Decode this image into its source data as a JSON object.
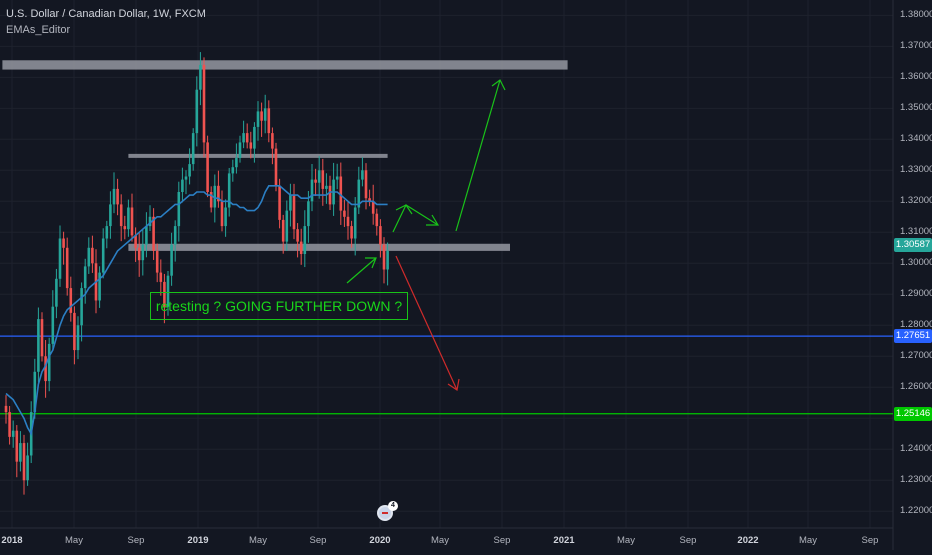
{
  "header": {
    "title": "U.S. Dollar / Canadian Dollar, 1W, FXCM",
    "indicator": "EMAs_Editor"
  },
  "annotation_text": "retesting ? GOING FURTHER DOWN ?",
  "event_badge": "4",
  "price_labels": [
    {
      "value": 1.30587,
      "text": "1.30587",
      "bg": "#26a69a",
      "fg": "#ffffff"
    },
    {
      "value": 1.27651,
      "text": "1.27651",
      "bg": "#2962ff",
      "fg": "#ffffff"
    },
    {
      "value": 1.25146,
      "text": "1.25146",
      "bg": "#00c800",
      "fg": "#ffffff"
    }
  ],
  "colors": {
    "up": "#26a69a",
    "down": "#ef5350",
    "ema": "#2b7fc4",
    "zone": "#9598a1",
    "arrow_up": "#19c319",
    "arrow_down": "#d02b2b",
    "blue_line": "#2962ff",
    "green_line": "#00c800",
    "grid": "#1e222d",
    "background": "#131722"
  },
  "chart_data": {
    "type": "candlestick",
    "symbol": "USDCAD",
    "timeframe": "1W",
    "ylim": [
      1.2146,
      1.3843
    ],
    "x_ticks": [
      {
        "label": "2018",
        "year": true
      },
      {
        "label": "May",
        "year": false
      },
      {
        "label": "Sep",
        "year": false
      },
      {
        "label": "2019",
        "year": true
      },
      {
        "label": "May",
        "year": false
      },
      {
        "label": "Sep",
        "year": false
      },
      {
        "label": "2020",
        "year": true
      },
      {
        "label": "May",
        "year": false
      },
      {
        "label": "Sep",
        "year": false
      },
      {
        "label": "2021",
        "year": true
      },
      {
        "label": "May",
        "year": false
      },
      {
        "label": "Sep",
        "year": false
      },
      {
        "label": "2022",
        "year": true
      },
      {
        "label": "May",
        "year": false
      },
      {
        "label": "Sep",
        "year": false
      }
    ],
    "y_ticks": [
      "1.38000",
      "1.37000",
      "1.36000",
      "1.35000",
      "1.34000",
      "1.33000",
      "1.32000",
      "1.31000",
      "1.30000",
      "1.29000",
      "1.28000",
      "1.27000",
      "1.26000",
      "1.25000",
      "1.24000",
      "1.23000",
      "1.22000"
    ],
    "closes": [
      1.252,
      1.244,
      1.246,
      1.236,
      1.242,
      1.23,
      1.238,
      1.252,
      1.265,
      1.282,
      1.27,
      1.262,
      1.274,
      1.286,
      1.295,
      1.308,
      1.305,
      1.292,
      1.284,
      1.272,
      1.28,
      1.292,
      1.299,
      1.305,
      1.3,
      1.288,
      1.297,
      1.308,
      1.312,
      1.319,
      1.324,
      1.319,
      1.312,
      1.311,
      1.318,
      1.309,
      1.305,
      1.301,
      1.306,
      1.312,
      1.315,
      1.304,
      1.297,
      1.294,
      1.286,
      1.296,
      1.306,
      1.312,
      1.323,
      1.327,
      1.328,
      1.332,
      1.342,
      1.356,
      1.364,
      1.339,
      1.323,
      1.318,
      1.325,
      1.32,
      1.312,
      1.318,
      1.329,
      1.331,
      1.334,
      1.339,
      1.342,
      1.339,
      1.337,
      1.344,
      1.349,
      1.346,
      1.35,
      1.342,
      1.337,
      1.325,
      1.314,
      1.307,
      1.317,
      1.322,
      1.311,
      1.307,
      1.303,
      1.312,
      1.32,
      1.327,
      1.326,
      1.33,
      1.324,
      1.325,
      1.319,
      1.327,
      1.328,
      1.317,
      1.315,
      1.312,
      1.308,
      1.318,
      1.327,
      1.33,
      1.321,
      1.32,
      1.316,
      1.312,
      1.306,
      1.298,
      1.304
    ],
    "ema": [
      1.258,
      1.257,
      1.256,
      1.254,
      1.252,
      1.25,
      1.247,
      1.245,
      1.252,
      1.261,
      1.265,
      1.267,
      1.27,
      1.272,
      1.276,
      1.28,
      1.283,
      1.285,
      1.286,
      1.287,
      1.288,
      1.289,
      1.29,
      1.292,
      1.293,
      1.294,
      1.295,
      1.296,
      1.298,
      1.3,
      1.302,
      1.304,
      1.305,
      1.306,
      1.307,
      1.308,
      1.309,
      1.31,
      1.311,
      1.312,
      1.313,
      1.314,
      1.315,
      1.315,
      1.316,
      1.317,
      1.318,
      1.319,
      1.319,
      1.32,
      1.321,
      1.322,
      1.322,
      1.323,
      1.323,
      1.323,
      1.322,
      1.322,
      1.321,
      1.321,
      1.32,
      1.32,
      1.32,
      1.319,
      1.319,
      1.318,
      1.318,
      1.317,
      1.317,
      1.317,
      1.318,
      1.32,
      1.323,
      1.325,
      1.325,
      1.325,
      1.325,
      1.324,
      1.323,
      1.322,
      1.322,
      1.322,
      1.321,
      1.321,
      1.321,
      1.322,
      1.322,
      1.322,
      1.322,
      1.322,
      1.323,
      1.323,
      1.323,
      1.322,
      1.321,
      1.32,
      1.319,
      1.319,
      1.319,
      1.32,
      1.32,
      1.32,
      1.32,
      1.319,
      1.319,
      1.319,
      1.319
    ],
    "zones": [
      {
        "x_from": -1,
        "x_to": 156,
        "y_from": 1.3625,
        "y_to": 1.3655
      },
      {
        "x_from": 34,
        "x_to": 106,
        "y_from": 1.3343,
        "y_to": 1.3353
      },
      {
        "x_from": 34,
        "x_to": 140,
        "y_from": 1.304,
        "y_to": 1.3063
      }
    ],
    "horizontal_lines": [
      {
        "price": 1.27651,
        "color": "blue"
      },
      {
        "price": 1.25146,
        "color": "green"
      }
    ]
  }
}
